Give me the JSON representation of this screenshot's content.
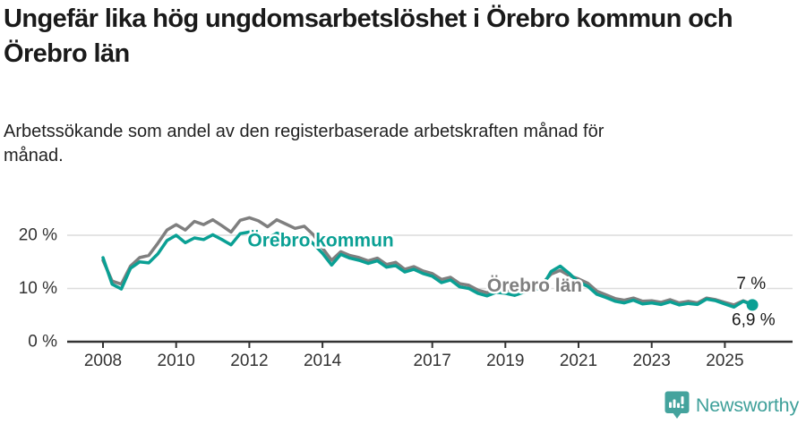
{
  "title": "Ungefär lika hög ungdomsarbetslöshet i Örebro kommun och Örebro län",
  "subtitle": "Arbetssökande som andel av den registerbaserade arbetskraften månad för månad.",
  "footer": {
    "brand": "Newsworthy"
  },
  "colors": {
    "kommun": "#0aa094",
    "lan": "#7f7f7f",
    "dark_text": "#1a1a1a",
    "axis_text": "#333333",
    "gridline": "#dcdcdc",
    "logo_teal": "#44a39d"
  },
  "chart_data": {
    "type": "line",
    "unit": "%",
    "xlim": [
      2007.02,
      2026.85
    ],
    "ylim": [
      0,
      25.5
    ],
    "grid": "horizontal",
    "x_ticks": [
      {
        "year": 2008,
        "label": "2008"
      },
      {
        "year": 2010,
        "label": "2010"
      },
      {
        "year": 2012,
        "label": "2012"
      },
      {
        "year": 2014,
        "label": "2014"
      },
      {
        "year": 2017,
        "label": "2017"
      },
      {
        "year": 2019,
        "label": "2019"
      },
      {
        "year": 2021,
        "label": "2021"
      },
      {
        "year": 2023,
        "label": "2023"
      },
      {
        "year": 2025,
        "label": "2025"
      }
    ],
    "y_ticks": [
      {
        "value": 0,
        "label": "0 %"
      },
      {
        "value": 10,
        "label": "10 %"
      },
      {
        "value": 20,
        "label": "20 %"
      }
    ],
    "x": [
      2008,
      2008.25,
      2008.5,
      2008.75,
      2009,
      2009.25,
      2009.5,
      2009.75,
      2010,
      2010.25,
      2010.5,
      2010.75,
      2011,
      2011.25,
      2011.5,
      2011.75,
      2012,
      2012.25,
      2012.5,
      2012.75,
      2013,
      2013.25,
      2013.5,
      2013.75,
      2014,
      2014.25,
      2014.5,
      2014.75,
      2015,
      2015.25,
      2015.5,
      2015.75,
      2016,
      2016.25,
      2016.5,
      2016.75,
      2017,
      2017.25,
      2017.5,
      2017.75,
      2018,
      2018.25,
      2018.5,
      2018.75,
      2019,
      2019.25,
      2019.5,
      2019.75,
      2020,
      2020.25,
      2020.5,
      2020.75,
      2021,
      2021.25,
      2021.5,
      2021.75,
      2022,
      2022.25,
      2022.5,
      2022.75,
      2023,
      2023.25,
      2023.5,
      2023.75,
      2024,
      2024.25,
      2024.5,
      2024.75,
      2025,
      2025.25,
      2025.5,
      2025.75
    ],
    "series": [
      {
        "name": "Örebro län",
        "color_key": "lan",
        "values": [
          15.3,
          11.4,
          10.8,
          14.2,
          15.8,
          16.2,
          18.5,
          21.0,
          22.0,
          21.0,
          22.6,
          22.0,
          22.9,
          21.8,
          20.6,
          22.8,
          23.3,
          22.7,
          21.6,
          22.9,
          22.1,
          21.3,
          21.7,
          20.1,
          17.6,
          15.3,
          16.9,
          16.2,
          15.8,
          15.2,
          15.7,
          14.5,
          14.9,
          13.6,
          14.1,
          13.3,
          12.8,
          11.7,
          12.1,
          10.9,
          10.6,
          9.7,
          9.2,
          9.9,
          9.8,
          9.4,
          10.0,
          10.2,
          10.9,
          12.7,
          13.4,
          12.4,
          11.8,
          11.0,
          9.5,
          8.8,
          8.1,
          7.8,
          8.2,
          7.6,
          7.7,
          7.4,
          7.9,
          7.3,
          7.6,
          7.3,
          8.2,
          7.9,
          7.4,
          6.9,
          7.7,
          7.0
        ]
      },
      {
        "name": "Örebro kommun",
        "color_key": "kommun",
        "values": [
          15.8,
          10.8,
          9.9,
          13.8,
          15.0,
          14.8,
          16.5,
          19.0,
          20.0,
          18.6,
          19.5,
          19.2,
          20.1,
          19.2,
          18.2,
          20.3,
          20.6,
          20.2,
          19.4,
          20.4,
          19.9,
          19.4,
          19.9,
          18.4,
          16.6,
          14.4,
          16.4,
          15.7,
          15.3,
          14.7,
          15.2,
          14.0,
          14.3,
          13.1,
          13.6,
          12.8,
          12.3,
          11.1,
          11.6,
          10.3,
          10.0,
          9.1,
          8.6,
          9.3,
          9.1,
          8.7,
          9.3,
          9.6,
          10.3,
          13.2,
          14.2,
          12.8,
          11.2,
          10.4,
          8.9,
          8.3,
          7.6,
          7.3,
          7.8,
          7.1,
          7.3,
          7.0,
          7.5,
          6.9,
          7.2,
          7.0,
          8.0,
          7.7,
          7.1,
          6.5,
          7.6,
          6.9
        ]
      }
    ],
    "annotations": [
      {
        "text": "Örebro kommun",
        "year": 2013.95,
        "value": 19.0,
        "color_key": "kommun",
        "bold": true,
        "size": 21
      },
      {
        "text": "Örebro län",
        "year": 2019.8,
        "value": 10.5,
        "color_key": "lan",
        "bold": true,
        "size": 21
      },
      {
        "text": "7 %",
        "year": 2025.72,
        "value": 10.8,
        "color_key": "dark_text",
        "bold": false,
        "size": 19
      },
      {
        "text": "6,9 %",
        "year": 2025.78,
        "value": 4.0,
        "color_key": "dark_text",
        "bold": false,
        "size": 19
      }
    ],
    "end_dot": {
      "year": 2025.75,
      "value": 6.9,
      "color_key": "kommun",
      "radius": 6.5
    }
  }
}
